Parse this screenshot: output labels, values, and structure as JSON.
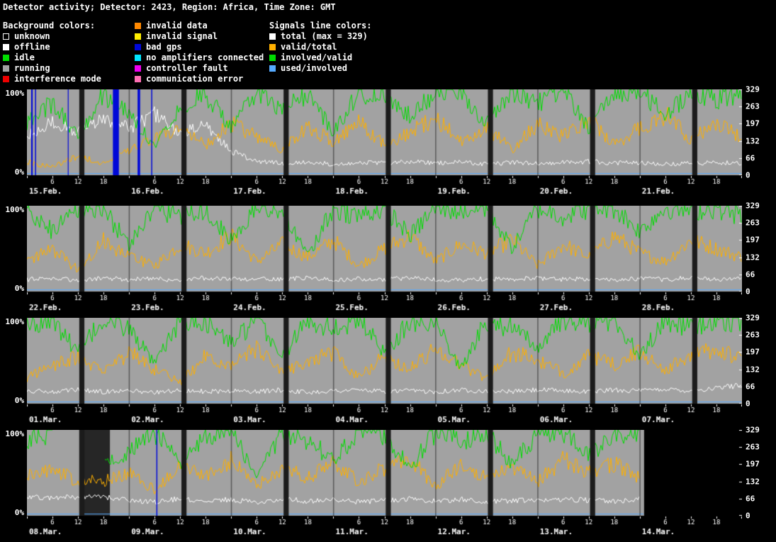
{
  "header": {
    "title": "Detector activity; Detector: 2423, Region: Africa, Time Zone: GMT"
  },
  "legend": {
    "background_title": "Background colors:",
    "background_items": [
      {
        "label": "unknown",
        "color": "#000000",
        "border": "#ffffff"
      },
      {
        "label": "offline",
        "color": "#ffffff"
      },
      {
        "label": "idle",
        "color": "#00dd00"
      },
      {
        "label": "running",
        "color": "#a2a2a2"
      },
      {
        "label": "interference mode",
        "color": "#ee0000"
      }
    ],
    "status_items": [
      {
        "label": "invalid data",
        "color": "#ff8800"
      },
      {
        "label": "invalid signal",
        "color": "#ffee00"
      },
      {
        "label": "bad gps",
        "color": "#0008d8"
      },
      {
        "label": "no amplifiers connected",
        "color": "#00e5ff"
      },
      {
        "label": "controller fault",
        "color": "#ee00ee"
      },
      {
        "label": "communication error",
        "color": "#ff6eb4"
      }
    ],
    "signals_title": "Signals line colors:",
    "signal_items": [
      {
        "label": "total (max = 329)",
        "color": "#ffffff"
      },
      {
        "label": "valid/total",
        "color": "#ffb000"
      },
      {
        "label": "involved/valid",
        "color": "#00dd00"
      },
      {
        "label": "used/involved",
        "color": "#55aaff"
      }
    ]
  },
  "axes": {
    "left_top": "100%",
    "left_bottom": "0%",
    "right_ticks": [
      "329",
      "263",
      "197",
      "132",
      "66",
      "0"
    ],
    "right_axis_max": 329,
    "hour_ticks": [
      6,
      12,
      18
    ]
  },
  "chart_data": [
    {
      "type": "line",
      "days": [
        "15.Feb.",
        "16.Feb.",
        "17.Feb.",
        "18.Feb.",
        "19.Feb.",
        "20.Feb.",
        "21.Feb."
      ],
      "hours_total": 168,
      "sample_step_hours": 6,
      "data_end_hour": 168,
      "ylim_pct": [
        0,
        100
      ],
      "background_color": "#a2a2a2",
      "daily_band": {
        "start_h": 12.3,
        "end_h": 13.5,
        "color": "#1b1b1b"
      },
      "day_separators": true,
      "bands": [
        {
          "start_h": 1.0,
          "end_h": 1.35,
          "color": "#0008d8",
          "layer": "over"
        },
        {
          "start_h": 1.9,
          "end_h": 2.15,
          "color": "#0008d8",
          "layer": "over"
        },
        {
          "start_h": 9.6,
          "end_h": 9.8,
          "color": "#0008d8",
          "layer": "over"
        },
        {
          "start_h": 20.2,
          "end_h": 21.6,
          "color": "#0008d8",
          "layer": "over"
        },
        {
          "start_h": 26.0,
          "end_h": 26.6,
          "color": "#0008d8",
          "layer": "over"
        },
        {
          "start_h": 29.2,
          "end_h": 29.45,
          "color": "#0008d8",
          "layer": "over"
        }
      ],
      "series": [
        {
          "name": "used/involved",
          "color": "#55aaff",
          "constant": 2
        },
        {
          "name": "total",
          "color": "#ffffff",
          "noise_rel": 0.12,
          "noise_abs": 1,
          "values": [
            45,
            62,
            50,
            68,
            55,
            72,
            48,
            58,
            28,
            16,
            14,
            15,
            13,
            15,
            14,
            16,
            14,
            15,
            13,
            15,
            14,
            15,
            16,
            14,
            15,
            13,
            14,
            15,
            14
          ]
        },
        {
          "name": "valid/total",
          "color": "#ffb000",
          "noise_rel": 0.16,
          "noise_abs": 1,
          "values": [
            15,
            10,
            22,
            14,
            28,
            42,
            55,
            35,
            60,
            45,
            30,
            55,
            40,
            62,
            35,
            50,
            66,
            40,
            55,
            30,
            60,
            45,
            65,
            35,
            55,
            70,
            42,
            60,
            45
          ]
        },
        {
          "name": "involved/valid",
          "color": "#00dd00",
          "noise_rel": 0.13,
          "noise_abs": 1,
          "values": [
            60,
            85,
            45,
            95,
            70,
            35,
            80,
            95,
            55,
            98,
            75,
            95,
            50,
            98,
            90,
            70,
            98,
            95,
            60,
            98,
            85,
            98,
            55,
            95,
            98,
            70,
            98,
            88,
            98
          ]
        }
      ]
    },
    {
      "type": "line",
      "days": [
        "22.Feb.",
        "23.Feb.",
        "24.Feb.",
        "25.Feb.",
        "26.Feb.",
        "27.Feb.",
        "28.Feb."
      ],
      "hours_total": 168,
      "sample_step_hours": 6,
      "data_end_hour": 168,
      "ylim_pct": [
        0,
        100
      ],
      "background_color": "#a2a2a2",
      "daily_band": {
        "start_h": 12.3,
        "end_h": 13.5,
        "color": "#1b1b1b"
      },
      "day_separators": true,
      "bands": [],
      "series": [
        {
          "name": "used/involved",
          "color": "#55aaff",
          "constant": 2
        },
        {
          "name": "total",
          "color": "#ffffff",
          "noise_rel": 0.12,
          "noise_abs": 1,
          "values": [
            14,
            15,
            13,
            16,
            14,
            15,
            13,
            16,
            14,
            15,
            14,
            16,
            13,
            15,
            14,
            16,
            14,
            13,
            15,
            14,
            16,
            14,
            15,
            13,
            15,
            14,
            16,
            14,
            15
          ]
        },
        {
          "name": "valid/total",
          "color": "#ffb000",
          "noise_rel": 0.16,
          "noise_abs": 1,
          "values": [
            35,
            50,
            25,
            60,
            40,
            30,
            55,
            45,
            65,
            35,
            55,
            40,
            60,
            30,
            50,
            65,
            35,
            55,
            45,
            60,
            30,
            55,
            40,
            65,
            45,
            35,
            60,
            50,
            40
          ]
        },
        {
          "name": "involved/valid",
          "color": "#00dd00",
          "noise_rel": 0.13,
          "noise_abs": 1,
          "values": [
            98,
            70,
            98,
            95,
            55,
            98,
            88,
            98,
            60,
            98,
            95,
            40,
            98,
            88,
            98,
            65,
            98,
            95,
            98,
            50,
            98,
            88,
            98,
            98,
            70,
            98,
            95,
            98,
            88
          ]
        }
      ]
    },
    {
      "type": "line",
      "days": [
        "01.Mar.",
        "02.Mar.",
        "03.Mar.",
        "04.Mar.",
        "05.Mar.",
        "06.Mar.",
        "07.Mar."
      ],
      "hours_total": 168,
      "sample_step_hours": 6,
      "data_end_hour": 168,
      "ylim_pct": [
        0,
        100
      ],
      "background_color": "#a2a2a2",
      "daily_band": {
        "start_h": 12.3,
        "end_h": 13.5,
        "color": "#1b1b1b"
      },
      "day_separators": true,
      "bands": [],
      "series": [
        {
          "name": "used/involved",
          "color": "#55aaff",
          "constant": 2
        },
        {
          "name": "total",
          "color": "#ffffff",
          "noise_rel": 0.12,
          "noise_abs": 1,
          "values": [
            15,
            14,
            16,
            14,
            15,
            13,
            16,
            14,
            15,
            14,
            16,
            13,
            15,
            16,
            14,
            15,
            14,
            16,
            15,
            14,
            16,
            15,
            14,
            16,
            15,
            17,
            15,
            18,
            22
          ]
        },
        {
          "name": "valid/total",
          "color": "#ffb000",
          "noise_rel": 0.16,
          "noise_abs": 1,
          "values": [
            30,
            45,
            55,
            35,
            60,
            40,
            25,
            55,
            45,
            65,
            35,
            50,
            60,
            30,
            55,
            40,
            65,
            45,
            30,
            60,
            50,
            35,
            55,
            45,
            60,
            40,
            55,
            65,
            50
          ]
        },
        {
          "name": "involved/valid",
          "color": "#00dd00",
          "noise_rel": 0.13,
          "noise_abs": 1,
          "values": [
            95,
            98,
            60,
            98,
            88,
            45,
            98,
            95,
            70,
            98,
            55,
            98,
            88,
            98,
            60,
            95,
            98,
            40,
            98,
            88,
            65,
            98,
            95,
            98,
            55,
            98,
            88,
            98,
            95
          ]
        }
      ]
    },
    {
      "type": "line",
      "days": [
        "08.Mar.",
        "09.Mar.",
        "10.Mar.",
        "11.Mar.",
        "12.Mar.",
        "13.Mar.",
        "14.Mar."
      ],
      "hours_total": 168,
      "sample_step_hours": 6,
      "data_end_hour": 145,
      "ylim_pct": [
        0,
        100
      ],
      "background_color": "#a2a2a2",
      "daily_band": {
        "start_h": 12.3,
        "end_h": 13.5,
        "color": "#1b1b1b"
      },
      "day_separators": true,
      "bands": [
        {
          "start_h": 12.3,
          "end_h": 19.5,
          "color": "#262626",
          "layer": "under"
        },
        {
          "start_h": 30.4,
          "end_h": 30.65,
          "color": "#0008d8",
          "layer": "over"
        }
      ],
      "series": [
        {
          "name": "used/involved",
          "color": "#55aaff",
          "constant": 2
        },
        {
          "name": "total",
          "color": "#ffffff",
          "noise_rel": 0.12,
          "noise_abs": 1,
          "values": [
            20,
            22,
            22,
            22,
            18,
            16,
            20,
            17,
            19,
            16,
            20,
            17,
            19,
            16,
            18,
            20,
            17,
            19,
            16,
            18,
            17,
            20,
            18,
            17,
            19
          ]
        },
        {
          "name": "valid/total",
          "color": "#ffb000",
          "noise_rel": 0.16,
          "noise_abs": 1,
          "values": [
            45,
            55,
            40,
            40,
            50,
            30,
            60,
            45,
            65,
            35,
            55,
            45,
            60,
            40,
            55,
            65,
            35,
            60,
            45,
            55,
            40,
            65,
            50,
            60,
            45
          ]
        },
        {
          "name": "involved/valid",
          "color": "#00dd00",
          "noise_rel": 0.13,
          "noise_abs": 1,
          "values": [
            88,
            98,
            null,
            60,
            75,
            98,
            60,
            95,
            98,
            45,
            98,
            88,
            65,
            98,
            95,
            55,
            98,
            88,
            98,
            60,
            95,
            98,
            70,
            98,
            88
          ]
        }
      ]
    }
  ]
}
